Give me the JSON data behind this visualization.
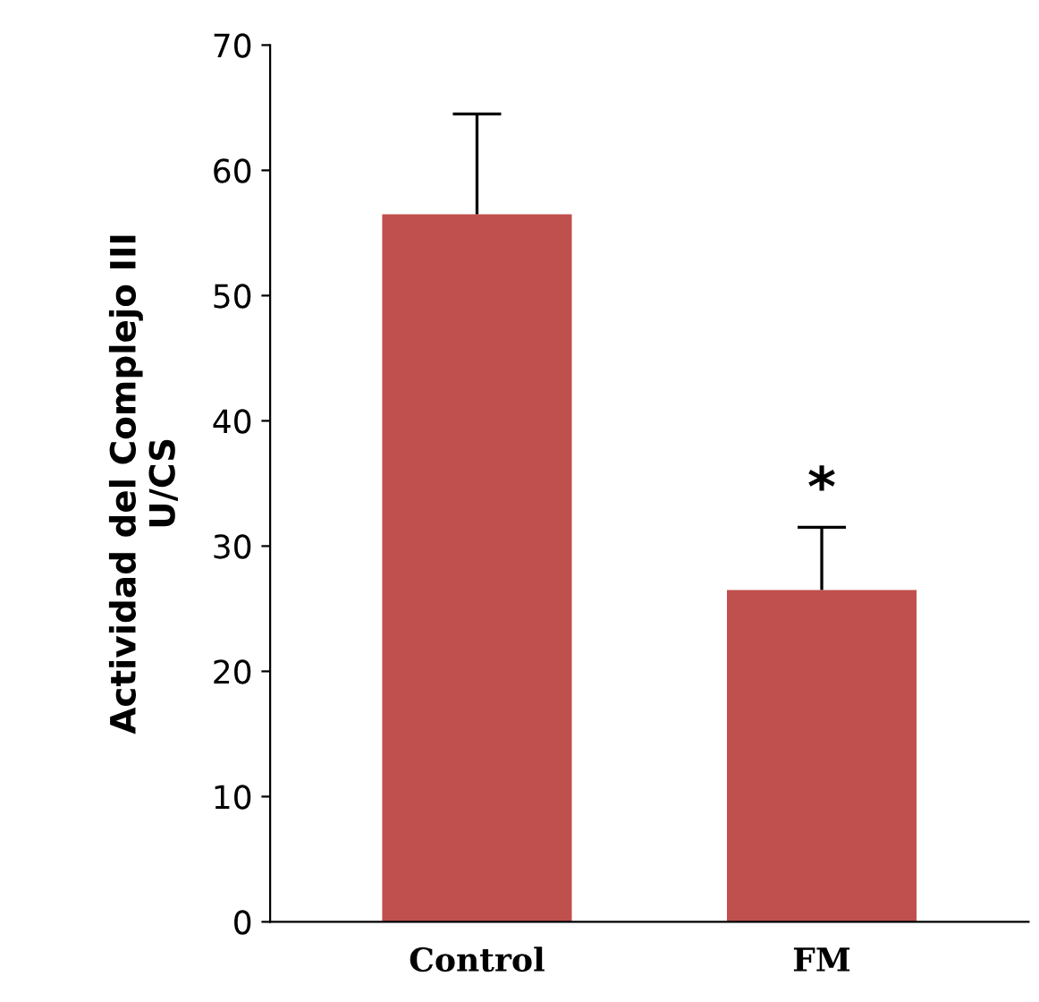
{
  "chart_data": {
    "type": "bar",
    "ylabel": "Actividad del Complejo III\nU/CS",
    "categories": [
      "Control",
      "FM"
    ],
    "values": [
      56.5,
      26.5
    ],
    "errors": [
      [
        56.5,
        64.5
      ],
      [
        26.5,
        31.5
      ]
    ],
    "color": "#c0504d",
    "ylim": [
      0,
      70
    ],
    "yticks": [
      0,
      10,
      20,
      30,
      40,
      50,
      60,
      70
    ],
    "annotations": [
      {
        "text": "*",
        "x": "FM",
        "y": 31.5
      }
    ]
  }
}
